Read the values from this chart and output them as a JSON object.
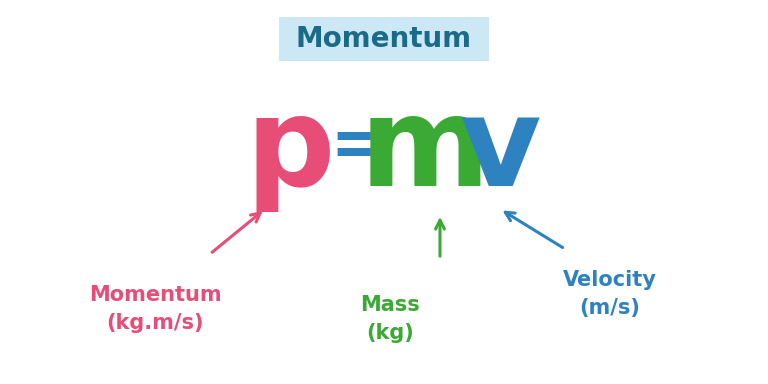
{
  "background_color": "#ffffff",
  "title_box_color": "#cce8f5",
  "title_text": "Momentum",
  "title_color": "#1a6b8a",
  "formula_p": "p",
  "formula_eq": "=",
  "formula_m": "m",
  "formula_v": "v",
  "formula_p_color": "#e84d77",
  "formula_eq_color": "#2e82c0",
  "formula_m_color": "#3aaa35",
  "formula_v_color": "#2e82c0",
  "label_momentum": "Momentum\n(kg.m/s)",
  "label_mass": "Mass\n(kg)",
  "label_velocity": "Velocity\n(m/s)",
  "label_momentum_color": "#e84d77",
  "label_mass_color": "#3aaa35",
  "label_velocity_color": "#2e82c0",
  "arrow_momentum_color": "#e84d77",
  "arrow_mass_color": "#3aaa35",
  "arrow_velocity_color": "#2e82c0",
  "figsize": [
    7.68,
    3.84
  ],
  "dpi": 100
}
